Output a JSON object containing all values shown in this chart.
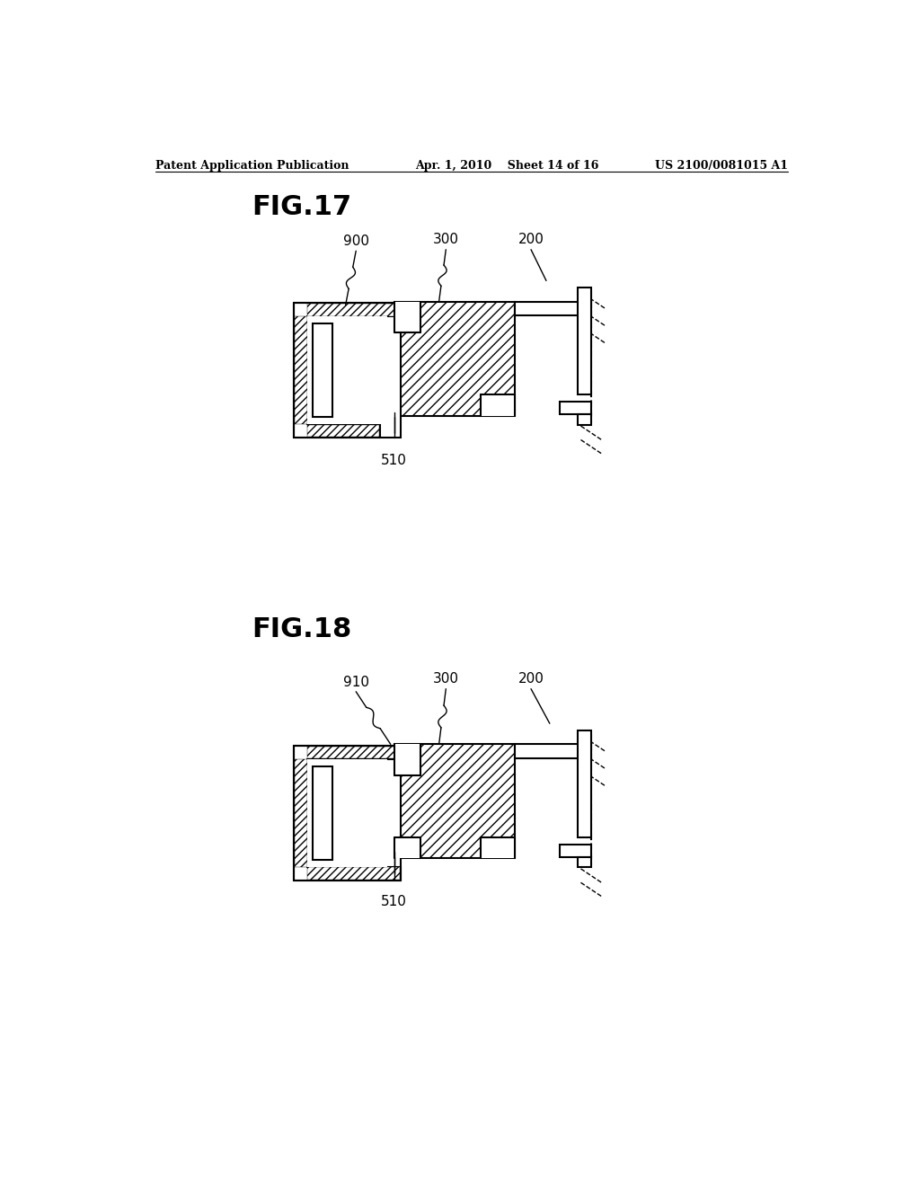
{
  "header_left": "Patent Application Publication",
  "header_center": "Apr. 1, 2010  Sheet 14 of 16",
  "header_right": "US 2100/0081015 A1",
  "fig17_label": "FIG.17",
  "fig18_label": "FIG.18",
  "bg_color": "#ffffff",
  "line_color": "#000000",
  "font_size_header": 9,
  "font_size_fig": 22,
  "font_size_ref": 11
}
